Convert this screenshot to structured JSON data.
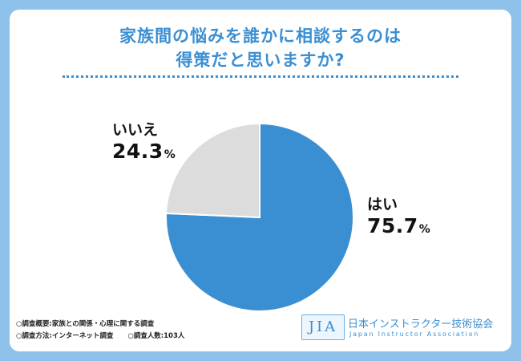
{
  "title_line1": "家族間の悩みを誰かに相談するのは",
  "title_line2": "得策だと思いますか?",
  "chart_data": {
    "type": "pie",
    "slices": [
      {
        "label": "はい",
        "value": 75.7,
        "color": "#3a8fd3"
      },
      {
        "label": "いいえ",
        "value": 24.3,
        "color": "#dcdcdc"
      }
    ],
    "value_suffix": "%"
  },
  "notes": {
    "line1": "○調査概要:家族との関係・心理に関する調査",
    "line2a": "○調査方法:インターネット調査",
    "line2b": "○調査人数:103人"
  },
  "logo": {
    "mark": "JIA",
    "name_jp": "日本インストラクター技術協会",
    "name_en": "Japan Instructor Association"
  }
}
